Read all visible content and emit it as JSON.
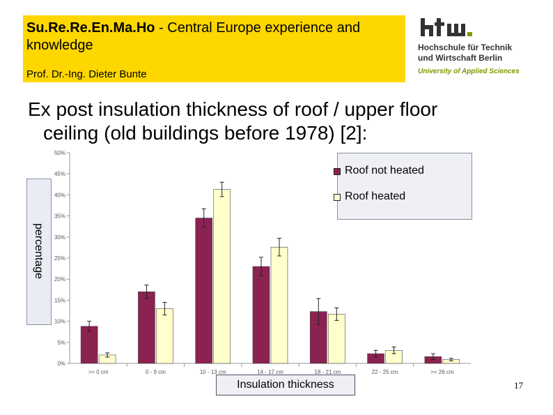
{
  "header": {
    "title_bold": "Su.Re.Re.En.Ma.Ho",
    "title_rest": " - Central Europe experience and knowledge",
    "author": "Prof. Dr.-Ing. Dieter Bunte"
  },
  "logo": {
    "mark": "htw.",
    "line1": "Hochschule für Technik",
    "line2": "und Wirtschaft Berlin",
    "line3": "University of Applied Sciences"
  },
  "slide": {
    "heading_line1": "Ex post insulation thickness of roof / upper floor",
    "heading_line2": "ceiling (old buildings before 1978) [2]:",
    "page_number": "17"
  },
  "colors": {
    "header_bg": "#ffd700",
    "series_not_heated": "#8b2252",
    "series_heated": "#ffffcc",
    "logo_accent": "#7a9a00"
  },
  "chart_data": {
    "type": "bar",
    "xlabel": "Insulation thickness",
    "ylabel": "percentage",
    "ylim": [
      0,
      50
    ],
    "yticks": [
      "0%",
      "5%",
      "10%",
      "15%",
      "20%",
      "25%",
      "30%",
      "35%",
      "40%",
      "45%",
      "50%"
    ],
    "categories": [
      ">= 0 cm",
      "0 - 9 cm",
      "10 - 13 cm",
      "14 - 17 cm",
      "18 - 21 cm",
      "22 - 25 cm",
      ">= 26 cm"
    ],
    "series": [
      {
        "name": "Roof not heated",
        "values": [
          8.8,
          17.0,
          34.5,
          23.0,
          12.3,
          2.3,
          1.6
        ],
        "errors": [
          1.2,
          1.6,
          2.2,
          2.2,
          3.1,
          0.8,
          0.7
        ]
      },
      {
        "name": "Roof heated",
        "values": [
          2.0,
          13.0,
          41.3,
          27.6,
          11.7,
          3.1,
          0.9
        ],
        "errors": [
          0.5,
          1.5,
          1.7,
          2.1,
          1.5,
          0.8,
          0.3
        ]
      }
    ],
    "legend_position": "top-right",
    "grid": false
  }
}
